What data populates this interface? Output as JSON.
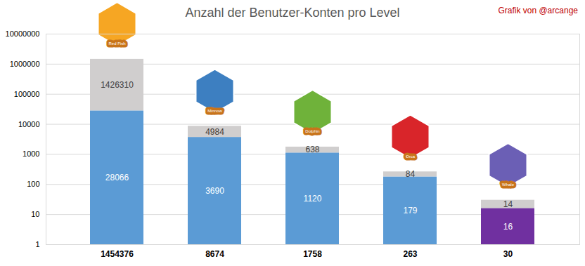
{
  "chart_data": {
    "type": "bar",
    "title": "Anzahl der Benutzer-Konten pro Level",
    "annotations": [
      "Grafik von @arcange"
    ],
    "badges": [
      "Red Fish",
      "Minnow",
      "Dolphin",
      "Orca",
      "Whale"
    ],
    "categories": [
      "1454376",
      "8674",
      "1758",
      "263",
      "30"
    ],
    "series": [
      {
        "colors": [
          "#5b9bd5",
          "#5b9bd5",
          "#5b9bd5",
          "#5b9bd5",
          "#7030a0"
        ],
        "values": [
          28066,
          3690,
          1120,
          179,
          16
        ]
      },
      {
        "color": "#d0cece",
        "values": [
          1426310,
          4984,
          638,
          84,
          14
        ]
      }
    ],
    "ylim": [
      1,
      10000000
    ],
    "yticks": [
      1,
      10,
      100,
      1000,
      10000,
      100000,
      1000000,
      10000000
    ],
    "log": "y",
    "grid": true,
    "stacked": true,
    "data_labels": true
  }
}
